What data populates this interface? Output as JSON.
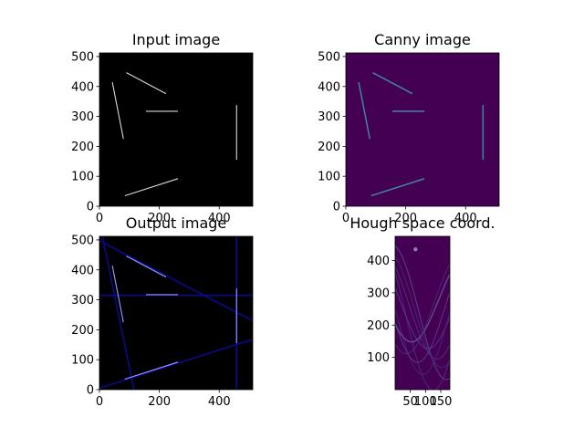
{
  "chart_data": [
    {
      "type": "image",
      "title": "Input image",
      "colormap": "gray",
      "xlim": [
        0,
        512
      ],
      "ylim": [
        512,
        0
      ],
      "xticks": [
        0,
        200,
        400
      ],
      "yticks": [
        0,
        100,
        200,
        300,
        400,
        500
      ],
      "segments": [
        {
          "x1": 85,
          "y1": 35,
          "x2": 262,
          "y2": 92
        },
        {
          "x1": 458,
          "y1": 155,
          "x2": 458,
          "y2": 338
        },
        {
          "x1": 80,
          "y1": 225,
          "x2": 43,
          "y2": 414
        },
        {
          "x1": 155,
          "y1": 317,
          "x2": 262,
          "y2": 317
        },
        {
          "x1": 90,
          "y1": 446,
          "x2": 222,
          "y2": 376
        }
      ]
    },
    {
      "type": "image",
      "title": "Canny image",
      "colormap": "viridis",
      "xlim": [
        0,
        512
      ],
      "ylim": [
        512,
        0
      ],
      "xticks": [
        0,
        200,
        400
      ],
      "yticks": [
        0,
        100,
        200,
        300,
        400,
        500
      ]
    },
    {
      "type": "image",
      "title": "Output image",
      "colormap": "gray",
      "xlim": [
        0,
        512
      ],
      "ylim": [
        512,
        0
      ],
      "xticks": [
        0,
        200,
        400
      ],
      "yticks": [
        0,
        100,
        200,
        300,
        400,
        500
      ],
      "detected_lines": [
        {
          "x1": 0,
          "y1": 5,
          "x2": 512,
          "y2": 168
        },
        {
          "x1": 0,
          "y1": 497,
          "x2": 512,
          "y2": 230
        },
        {
          "x1": 458,
          "y1": 0,
          "x2": 458,
          "y2": 512
        },
        {
          "x1": 0,
          "y1": 315,
          "x2": 512,
          "y2": 315
        },
        {
          "x1": 115,
          "y1": 0,
          "x2": 10,
          "y2": 512
        }
      ]
    },
    {
      "type": "heatmap",
      "title": "Hough space coord.",
      "colormap": "viridis",
      "xlim": [
        0,
        180
      ],
      "ylim": [
        475,
        0
      ],
      "xticks": [
        50,
        100,
        150
      ],
      "yticks": [
        100,
        200,
        300,
        400
      ]
    }
  ]
}
